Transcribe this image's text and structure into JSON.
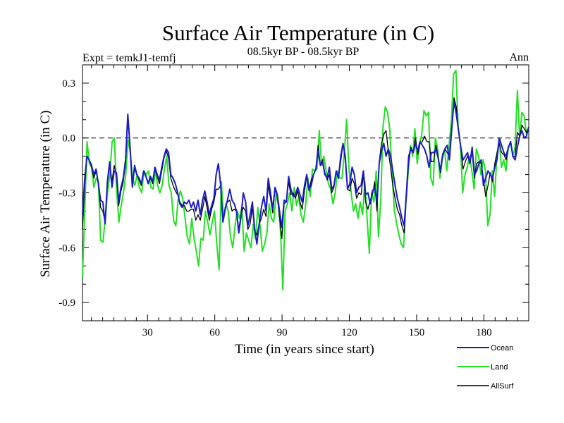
{
  "chart_data": {
    "type": "line",
    "title": "Surface Air Temperature (in C)",
    "subtitle": "08.5kyr BP - 08.5kyr BP",
    "left_label": "Expt = temkJ1-temfj",
    "right_label": "Ann",
    "xlabel": "Time (in years since start)",
    "ylabel": "Surface Air Temperature (in C)",
    "xlim": [
      1,
      200
    ],
    "ylim": [
      -1.0,
      0.4
    ],
    "xticks": [
      30,
      60,
      90,
      120,
      150,
      180
    ],
    "yticks": [
      0.3,
      0.0,
      -0.3,
      -0.6,
      -0.9
    ],
    "ytick_labels": [
      "0.3",
      "0.0",
      "-0.3",
      "-0.6",
      "-0.9"
    ],
    "reference_line": 0.0,
    "legend": [
      "Ocean",
      "Land",
      "AllSurf"
    ],
    "series": [
      {
        "name": "Ocean",
        "color": "#1a1acc",
        "values": [
          -0.42,
          -0.22,
          -0.1,
          -0.12,
          -0.15,
          -0.2,
          -0.17,
          -0.25,
          -0.34,
          -0.35,
          -0.47,
          -0.24,
          -0.13,
          -0.27,
          -0.18,
          -0.19,
          -0.35,
          -0.27,
          -0.22,
          -0.12,
          0.13,
          -0.05,
          -0.27,
          -0.15,
          -0.2,
          -0.22,
          -0.25,
          -0.18,
          -0.21,
          -0.25,
          -0.21,
          -0.24,
          -0.16,
          -0.2,
          -0.23,
          -0.16,
          -0.1,
          -0.06,
          -0.08,
          -0.2,
          -0.22,
          -0.25,
          -0.3,
          -0.36,
          -0.38,
          -0.35,
          -0.36,
          -0.34,
          -0.38,
          -0.35,
          -0.4,
          -0.34,
          -0.42,
          -0.34,
          -0.29,
          -0.35,
          -0.42,
          -0.37,
          -0.33,
          -0.2,
          -0.14,
          -0.26,
          -0.46,
          -0.39,
          -0.34,
          -0.28,
          -0.34,
          -0.36,
          -0.4,
          -0.52,
          -0.43,
          -0.3,
          -0.35,
          -0.48,
          -0.42,
          -0.35,
          -0.5,
          -0.58,
          -0.47,
          -0.38,
          -0.32,
          -0.4,
          -0.22,
          -0.3,
          -0.39,
          -0.27,
          -0.31,
          -0.4,
          -0.49,
          -0.34,
          -0.35,
          -0.21,
          -0.28,
          -0.32,
          -0.31,
          -0.27,
          -0.31,
          -0.35,
          -0.26,
          -0.2,
          -0.28,
          -0.26,
          -0.2,
          -0.17,
          -0.07,
          -0.15,
          -0.13,
          -0.2,
          -0.22,
          -0.16,
          -0.28,
          -0.26,
          -0.18,
          -0.22,
          -0.1,
          -0.03,
          -0.1,
          -0.28,
          -0.25,
          -0.16,
          -0.2,
          -0.3,
          -0.27,
          -0.26,
          -0.18,
          -0.31,
          -0.3,
          -0.36,
          -0.29,
          -0.27,
          -0.35,
          -0.14,
          -0.07,
          -0.03,
          -0.1,
          -0.06,
          -0.1,
          -0.18,
          -0.26,
          -0.33,
          -0.38,
          -0.44,
          -0.48,
          -0.3,
          -0.1,
          -0.06,
          -0.08,
          -0.03,
          -0.07,
          -0.02,
          -0.04,
          -0.06,
          -0.1,
          -0.16,
          -0.08,
          -0.08,
          -0.06,
          -0.11,
          -0.18,
          -0.09,
          -0.06,
          -0.04,
          -0.12,
          0.05,
          0.2,
          0.13,
          0.04,
          -0.05,
          -0.12,
          -0.1,
          -0.08,
          -0.14,
          -0.05,
          -0.2,
          -0.18,
          -0.14,
          -0.12,
          -0.26,
          -0.22,
          -0.18,
          -0.2,
          -0.22,
          -0.16,
          -0.12,
          0,
          -0.04,
          -0.08,
          -0.1,
          -0.05,
          -0.02,
          -0.1,
          -0.12,
          -0.05,
          0.01,
          0.04,
          0.0,
          0.01,
          0.06
        ]
      },
      {
        "name": "Land",
        "color": "#22e022",
        "values": [
          -0.76,
          -0.4,
          -0.02,
          -0.14,
          -0.16,
          -0.27,
          -0.22,
          -0.24,
          -0.56,
          -0.57,
          -0.44,
          -0.3,
          -0.2,
          -0.02,
          0.0,
          -0.29,
          -0.46,
          -0.37,
          -0.3,
          -0.2,
          -0.01,
          -0.08,
          -0.22,
          -0.26,
          -0.2,
          -0.27,
          -0.3,
          -0.18,
          -0.2,
          -0.18,
          -0.27,
          -0.28,
          -0.18,
          -0.26,
          -0.3,
          -0.26,
          -0.17,
          -0.1,
          -0.26,
          -0.3,
          -0.45,
          -0.48,
          -0.34,
          -0.29,
          -0.33,
          -0.43,
          -0.54,
          -0.58,
          -0.44,
          -0.55,
          -0.62,
          -0.7,
          -0.55,
          -0.56,
          -0.4,
          -0.46,
          -0.53,
          -0.46,
          -0.4,
          -0.58,
          -0.72,
          -0.24,
          -0.44,
          -0.36,
          -0.4,
          -0.54,
          -0.6,
          -0.48,
          -0.4,
          -0.44,
          -0.38,
          -0.62,
          -0.52,
          -0.56,
          -0.6,
          -0.47,
          -0.55,
          -0.38,
          -0.48,
          -0.62,
          -0.58,
          -0.52,
          -0.36,
          -0.44,
          -0.46,
          -0.31,
          -0.36,
          -0.52,
          -0.83,
          -0.4,
          -0.36,
          -0.3,
          -0.4,
          -0.27,
          -0.37,
          -0.32,
          -0.42,
          -0.46,
          -0.37,
          -0.22,
          -0.32,
          -0.17,
          -0.18,
          -0.17,
          0.04,
          -0.15,
          -0.1,
          -0.18,
          -0.25,
          -0.28,
          -0.36,
          -0.3,
          -0.18,
          -0.22,
          -0.22,
          -0.08,
          0.1,
          -0.16,
          -0.3,
          -0.4,
          -0.36,
          -0.44,
          -0.35,
          -0.42,
          -0.24,
          -0.44,
          -0.63,
          -0.3,
          -0.35,
          -0.18,
          -0.54,
          -0.34,
          0.06,
          0.17,
          0.14,
          0.04,
          -0.2,
          -0.4,
          -0.47,
          -0.53,
          -0.58,
          -0.6,
          -0.36,
          -0.2,
          -0.04,
          -0.1,
          0.05,
          -0.14,
          -0.04,
          0.02,
          0.15,
          0.12,
          0.14,
          -0.22,
          -0.26,
          0.0,
          -0.06,
          -0.22,
          -0.12,
          -0.06,
          -0.18,
          -0.04,
          0.09,
          0.35,
          0.37,
          0.06,
          -0.04,
          -0.3,
          -0.2,
          -0.16,
          -0.1,
          -0.18,
          -0.28,
          -0.06,
          -0.1,
          -0.2,
          -0.12,
          -0.18,
          -0.48,
          -0.42,
          -0.18,
          -0.32,
          -0.1,
          0.0,
          -0.16,
          -0.12,
          -0.18,
          -0.06,
          -0.02,
          -0.1,
          -0.05,
          0.26,
          0.0,
          0.14,
          0.12,
          0.02,
          0.06
        ]
      },
      {
        "name": "AllSurf",
        "color": "#000000",
        "values": [
          -0.5,
          -0.26,
          -0.1,
          -0.12,
          -0.16,
          -0.22,
          -0.18,
          -0.25,
          -0.38,
          -0.4,
          -0.46,
          -0.25,
          -0.14,
          -0.24,
          -0.15,
          -0.21,
          -0.37,
          -0.29,
          -0.24,
          -0.14,
          0.1,
          -0.05,
          -0.26,
          -0.17,
          -0.2,
          -0.23,
          -0.26,
          -0.18,
          -0.21,
          -0.24,
          -0.22,
          -0.25,
          -0.17,
          -0.21,
          -0.25,
          -0.18,
          -0.11,
          -0.07,
          -0.11,
          -0.22,
          -0.26,
          -0.29,
          -0.31,
          -0.35,
          -0.37,
          -0.37,
          -0.4,
          -0.4,
          -0.39,
          -0.39,
          -0.45,
          -0.42,
          -0.45,
          -0.39,
          -0.32,
          -0.38,
          -0.45,
          -0.39,
          -0.35,
          -0.28,
          -0.28,
          -0.26,
          -0.46,
          -0.38,
          -0.35,
          -0.34,
          -0.4,
          -0.39,
          -0.4,
          -0.5,
          -0.42,
          -0.38,
          -0.4,
          -0.5,
          -0.47,
          -0.38,
          -0.51,
          -0.53,
          -0.47,
          -0.44,
          -0.39,
          -0.43,
          -0.26,
          -0.33,
          -0.41,
          -0.28,
          -0.32,
          -0.43,
          -0.55,
          -0.36,
          -0.35,
          -0.24,
          -0.31,
          -0.3,
          -0.33,
          -0.29,
          -0.35,
          -0.39,
          -0.29,
          -0.21,
          -0.29,
          -0.23,
          -0.2,
          -0.17,
          -0.04,
          -0.15,
          -0.12,
          -0.19,
          -0.23,
          -0.2,
          -0.3,
          -0.27,
          -0.18,
          -0.22,
          -0.13,
          -0.03,
          -0.12,
          -0.28,
          -0.29,
          -0.22,
          -0.25,
          -0.33,
          -0.3,
          -0.31,
          -0.2,
          -0.35,
          -0.39,
          -0.34,
          -0.31,
          -0.24,
          -0.4,
          -0.13,
          -0.03,
          0.02,
          0.04,
          -0.07,
          -0.16,
          -0.26,
          -0.33,
          -0.39,
          -0.42,
          -0.48,
          -0.52,
          -0.32,
          -0.13,
          -0.05,
          -0.08,
          0.0,
          -0.09,
          -0.03,
          -0.02,
          0.01,
          -0.02,
          -0.02,
          -0.13,
          -0.13,
          -0.04,
          -0.1,
          -0.19,
          -0.1,
          -0.06,
          -0.08,
          -0.1,
          0.06,
          0.22,
          0.17,
          0.04,
          -0.05,
          -0.17,
          -0.13,
          -0.1,
          -0.13,
          -0.08,
          -0.22,
          -0.14,
          -0.13,
          -0.14,
          -0.22,
          -0.32,
          -0.26,
          -0.19,
          -0.24,
          -0.14,
          -0.08,
          -0.03,
          -0.08,
          -0.09,
          -0.12,
          -0.05,
          -0.02,
          -0.1,
          -0.1,
          0.03,
          0.01,
          0.07,
          0.05,
          0.03,
          0.06
        ]
      }
    ]
  }
}
